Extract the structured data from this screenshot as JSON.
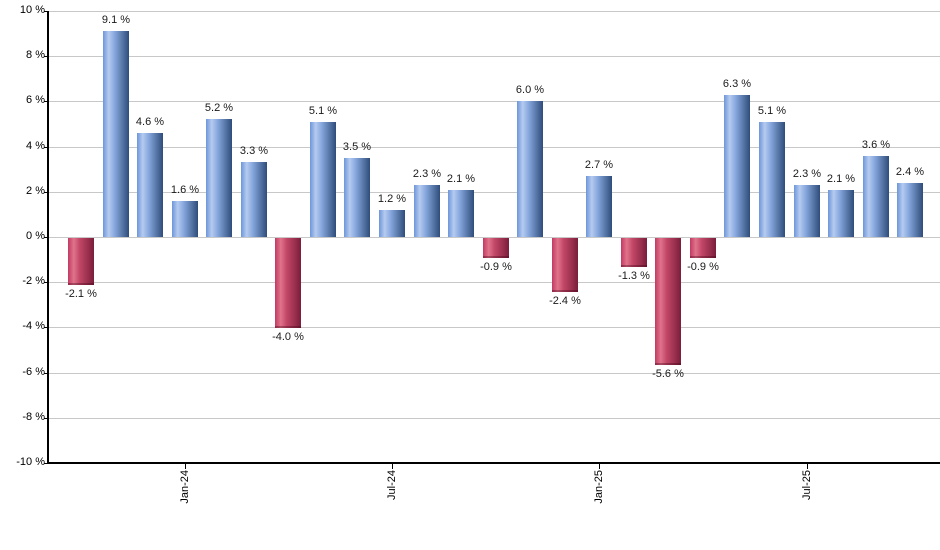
{
  "chart_data": {
    "type": "bar",
    "title": "",
    "xlabel": "",
    "ylabel": "",
    "values": [
      -2.1,
      9.1,
      4.6,
      1.6,
      5.2,
      3.3,
      -4.0,
      5.1,
      3.5,
      1.2,
      2.3,
      2.1,
      -0.9,
      6.0,
      -2.4,
      2.7,
      -1.3,
      -5.6,
      -0.9,
      6.3,
      5.1,
      2.3,
      2.1,
      3.6,
      2.4
    ],
    "bar_value_labels": [
      "-2.1 %",
      "9.1 %",
      "4.6 %",
      "1.6 %",
      "5.2 %",
      "3.3 %",
      "-4.0 %",
      "5.1 %",
      "3.5 %",
      "1.2 %",
      "2.3 %",
      "2.1 %",
      "-0.9 %",
      "6.0 %",
      "-2.4 %",
      "2.7 %",
      "-1.3 %",
      "-5.6 %",
      "-0.9 %",
      "6.3 %",
      "5.1 %",
      "2.3 %",
      "2.1 %",
      "3.6 %",
      "2.4 %"
    ],
    "x_axis_ticks": [
      {
        "bar_index": 3,
        "label": "Jan-24"
      },
      {
        "bar_index": 9,
        "label": "Jul-24"
      },
      {
        "bar_index": 15,
        "label": "Jan-25"
      },
      {
        "bar_index": 21,
        "label": "Jul-25"
      }
    ],
    "y_axis": {
      "min": -10,
      "max": 10,
      "step": 2,
      "tick_labels": [
        "10 %",
        "8 %",
        "6 %",
        "4 %",
        "2 %",
        "0 %",
        "-2 %",
        "-4 %",
        "-6 %",
        "-8 %",
        "-10 %"
      ]
    },
    "grid": true,
    "legend_position": "none",
    "colors": {
      "positive_bar": "#7ba1e0",
      "negative_bar": "#c83a62",
      "positive_gradient": [
        "#6d96d9",
        "#b5cbf0",
        "#86a7dd",
        "#2f4d7b"
      ],
      "negative_gradient": [
        "#c23a60",
        "#e0738c",
        "#c24767",
        "#7a1e3b"
      ],
      "gridline": "#c8c8c8",
      "axis": "#000000",
      "label_text": "#1a1a1a",
      "background": "#ffffff"
    }
  }
}
